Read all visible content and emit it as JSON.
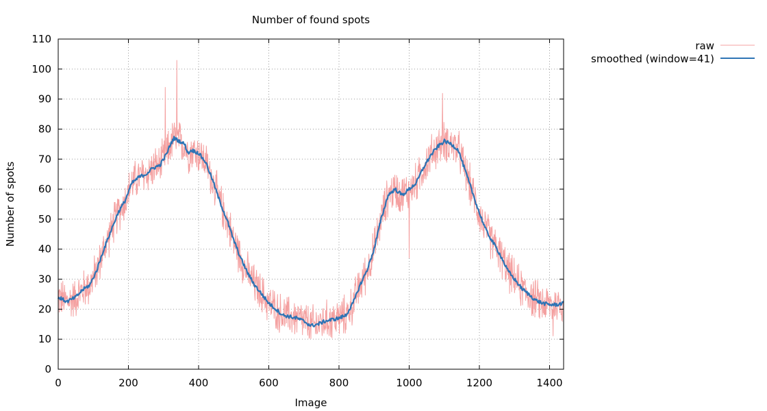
{
  "chart_data": {
    "type": "line",
    "title": "Number of found spots",
    "xlabel": "Image",
    "ylabel": "Number of spots",
    "xlim": [
      0,
      1440
    ],
    "ylim": [
      0,
      110
    ],
    "xticks": [
      0,
      200,
      400,
      600,
      800,
      1000,
      1200,
      1400
    ],
    "yticks": [
      0,
      10,
      20,
      30,
      40,
      50,
      60,
      70,
      80,
      90,
      100,
      110
    ],
    "grid": true,
    "legend_position": "top-right (outside plot)",
    "series": [
      {
        "name": "raw",
        "color": "#f4a0a0",
        "noise_amplitude": 8,
        "spikes": [
          [
            338,
            103
          ],
          [
            305,
            94
          ],
          [
            1095,
            92
          ],
          [
            1000,
            37
          ],
          [
            1410,
            11
          ]
        ]
      },
      {
        "name": "smoothed (window=41)",
        "color": "#2e74b5",
        "x": [
          0,
          25,
          50,
          70,
          90,
          110,
          130,
          150,
          170,
          190,
          210,
          230,
          250,
          270,
          290,
          310,
          320,
          330,
          345,
          360,
          370,
          380,
          400,
          420,
          440,
          460,
          480,
          500,
          520,
          540,
          560,
          580,
          600,
          620,
          640,
          660,
          680,
          700,
          720,
          740,
          760,
          780,
          800,
          820,
          840,
          860,
          880,
          900,
          920,
          940,
          960,
          980,
          1000,
          1020,
          1040,
          1060,
          1080,
          1100,
          1120,
          1140,
          1160,
          1180,
          1200,
          1220,
          1240,
          1260,
          1280,
          1300,
          1320,
          1340,
          1360,
          1380,
          1400,
          1420,
          1440
        ],
        "values": [
          24,
          22.5,
          24,
          26.5,
          28,
          33,
          40,
          46,
          52,
          56,
          62,
          64,
          65,
          67,
          68,
          72,
          75,
          77,
          76,
          75,
          72,
          73,
          72,
          69,
          63,
          56,
          50,
          43,
          37,
          32,
          28,
          25,
          22,
          20,
          18,
          17.5,
          17,
          16,
          14.5,
          15,
          16,
          16.5,
          17,
          18,
          22,
          28,
          33,
          40,
          50,
          58,
          60,
          58,
          60,
          62,
          67,
          71,
          74,
          76,
          75,
          73,
          66,
          59,
          52,
          46,
          42,
          38,
          33,
          30,
          27,
          25,
          23,
          22,
          21.5,
          21.5,
          22
        ]
      }
    ]
  }
}
